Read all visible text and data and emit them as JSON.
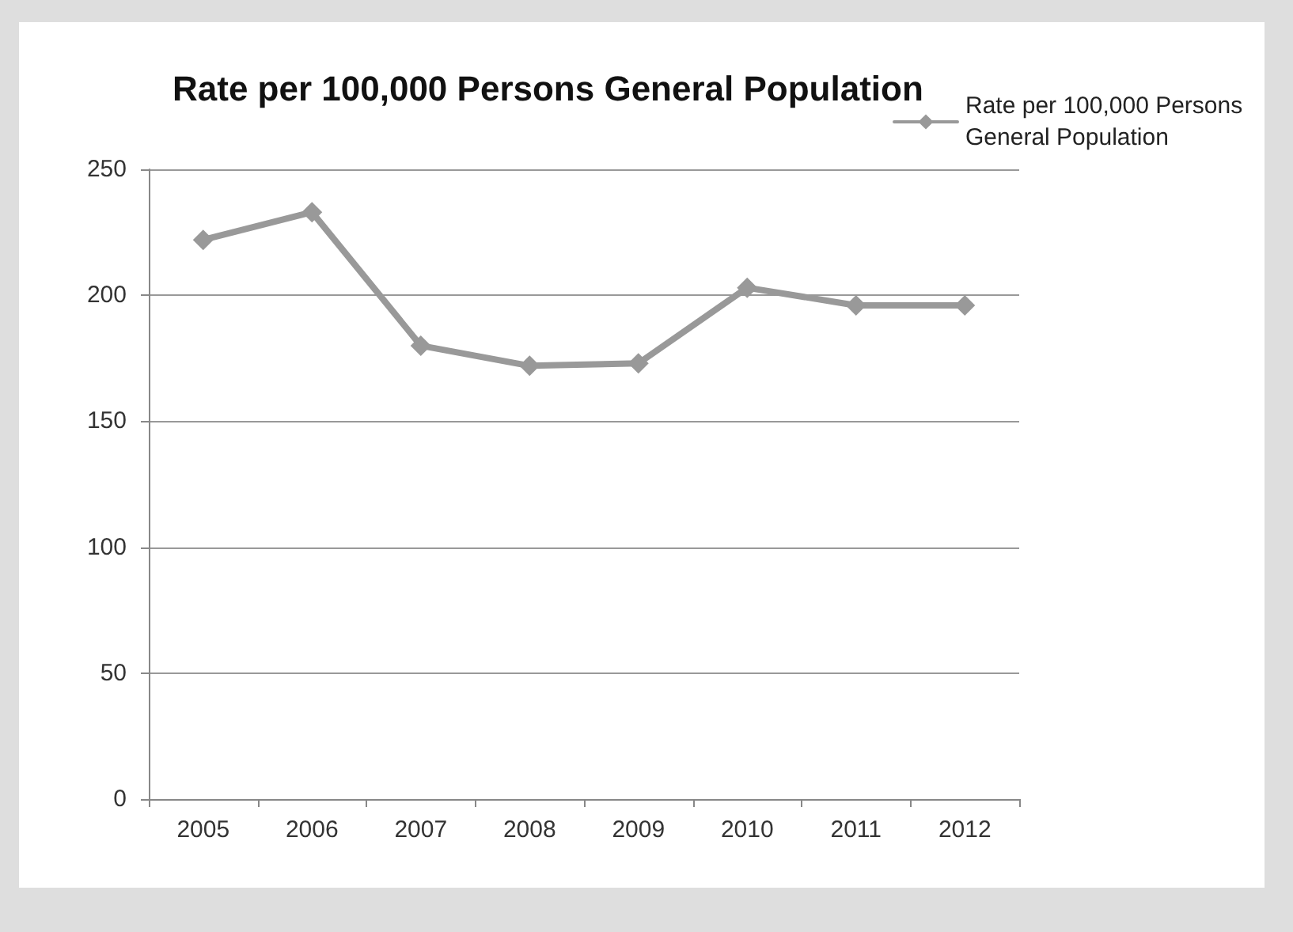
{
  "chart_data": {
    "type": "line",
    "title": "Rate per 100,000 Persons General Population",
    "categories": [
      "2005",
      "2006",
      "2007",
      "2008",
      "2009",
      "2010",
      "2011",
      "2012"
    ],
    "series": [
      {
        "name": "Rate per 100,000 Persons General Population",
        "color": "#999999",
        "values": [
          222,
          233,
          180,
          172,
          173,
          203,
          196,
          196
        ]
      }
    ],
    "ylim": [
      0,
      250
    ],
    "yticks": [
      0,
      50,
      100,
      150,
      200,
      250
    ],
    "grid": "y",
    "legend": "top right",
    "marker": "diamond",
    "line_style": "solid"
  }
}
